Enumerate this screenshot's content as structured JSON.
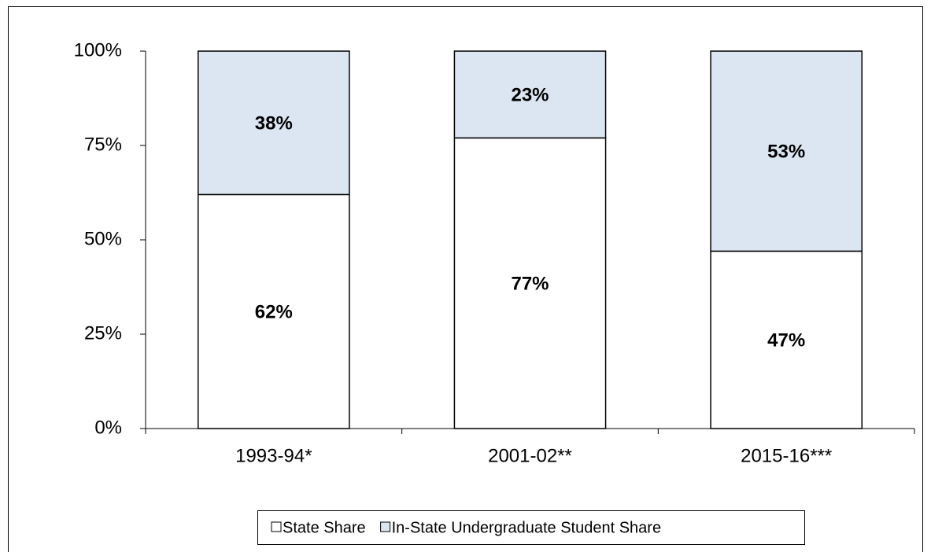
{
  "chart_data": {
    "type": "stacked-bar",
    "categories": [
      "1993-94*",
      "2001-02**",
      "2015-16***"
    ],
    "series": [
      {
        "name": "State Share",
        "color": "#ffffff",
        "values": [
          62,
          77,
          47
        ],
        "value_labels": [
          "62%",
          "77%",
          "47%"
        ]
      },
      {
        "name": "In-State Undergraduate Student Share",
        "color": "#dce6f2",
        "values": [
          38,
          23,
          53
        ],
        "value_labels": [
          "38%",
          "23%",
          "53%"
        ]
      }
    ],
    "ylim": [
      0,
      100
    ],
    "yticks": [
      {
        "value": 0,
        "label": "0%"
      },
      {
        "value": 25,
        "label": "25%"
      },
      {
        "value": 50,
        "label": "50%"
      },
      {
        "value": 75,
        "label": "75%"
      },
      {
        "value": 100,
        "label": "100%"
      }
    ],
    "grid": false,
    "legend": "bottom"
  }
}
